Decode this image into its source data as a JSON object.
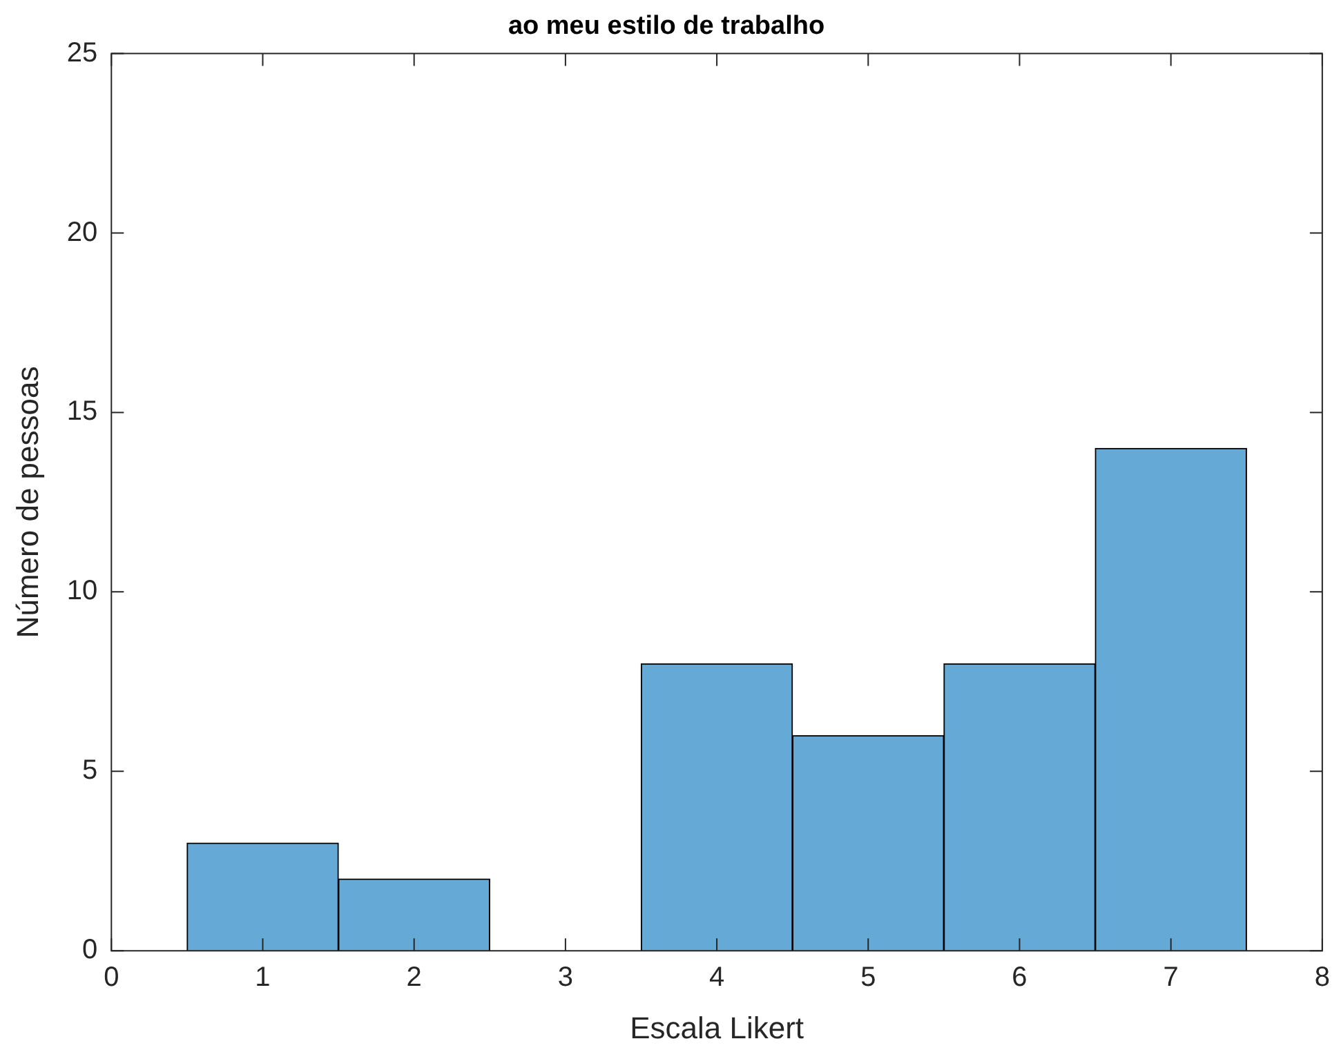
{
  "chart_data": {
    "type": "histogram",
    "title": "ao meu estilo de trabalho",
    "xlabel": "Escala Likert",
    "ylabel": "Número de pessoas",
    "bins": [
      0.5,
      1.5,
      2.5,
      3.5,
      4.5,
      5.5,
      6.5,
      7.5
    ],
    "values": [
      3,
      2,
      0,
      8,
      6,
      8,
      14
    ],
    "color": "#65a9d6",
    "xlim": [
      0,
      8
    ],
    "xticks": [
      0,
      1,
      2,
      3,
      4,
      5,
      6,
      7,
      8
    ],
    "ylim": [
      0,
      25
    ],
    "yticks": [
      0,
      5,
      10,
      15,
      20,
      25
    ],
    "grid": false,
    "legend": false
  }
}
